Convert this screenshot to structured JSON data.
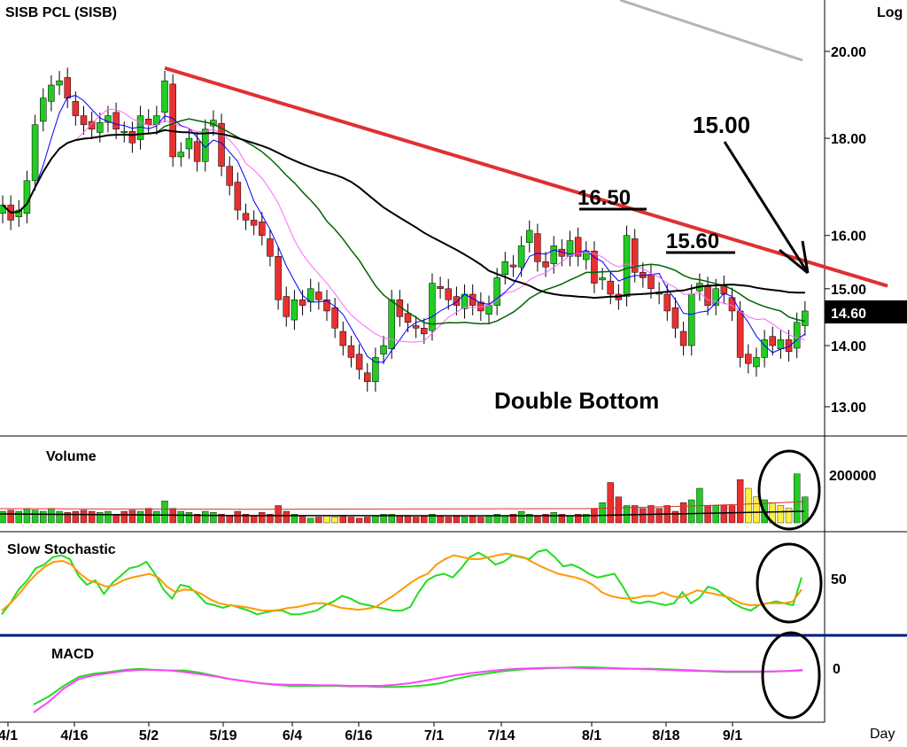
{
  "chart_data": [
    {
      "panel": "price",
      "type": "candlestick",
      "title": "SISB PCL (SISB)",
      "scale_label": "Log",
      "scale": "log",
      "ylim": [
        12.6,
        21.2
      ],
      "y_ticks": [
        "20.00",
        "18.00",
        "16.00",
        "15.00",
        "14.00",
        "13.00"
      ],
      "y_tick_values": [
        20,
        18,
        16,
        15,
        14,
        13
      ],
      "x_ticks": [
        "4/1",
        "4/16",
        "5/2",
        "5/19",
        "6/4",
        "6/16",
        "7/1",
        "7/14",
        "8/1",
        "8/18",
        "9/1"
      ],
      "x_axis_label": "Day",
      "last_price_label": "14.60",
      "last_price": 14.6,
      "closes": [
        16.6,
        16.3,
        16.5,
        17.1,
        18.3,
        18.9,
        19.2,
        19.3,
        18.9,
        18.5,
        18.3,
        18.2,
        18.35,
        18.5,
        18.2,
        18.15,
        17.9,
        18.5,
        18.3,
        18.5,
        19.3,
        17.6,
        17.7,
        18.0,
        17.5,
        18.2,
        18.4,
        17.4,
        17.0,
        16.5,
        16.3,
        16.2,
        16.0,
        15.6,
        14.8,
        14.5,
        14.8,
        14.7,
        15.0,
        14.8,
        14.6,
        14.3,
        14.0,
        13.8,
        13.6,
        13.4,
        13.8,
        14.0,
        14.8,
        14.5,
        14.4,
        14.3,
        14.2,
        15.1,
        15.0,
        14.8,
        14.7,
        14.9,
        14.7,
        14.6,
        14.7,
        15.2,
        15.5,
        15.4,
        15.8,
        16.1,
        15.5,
        15.4,
        15.8,
        15.6,
        15.9,
        15.6,
        15.7,
        15.1,
        15.2,
        14.9,
        14.8,
        16.0,
        15.3,
        15.2,
        15.0,
        14.9,
        14.6,
        14.3,
        14.0,
        14.9,
        15.1,
        14.7,
        15.0,
        14.9,
        14.6,
        13.8,
        13.7,
        13.8,
        14.1,
        14.0,
        14.1,
        13.9,
        14.4,
        14.6
      ],
      "trendline": {
        "from_index": 20,
        "from_value": 19.6,
        "to_index": 107,
        "to_value": 15.05,
        "color": "#e03030"
      },
      "ma_colors": {
        "long_sma": "#b4b4b4",
        "mid_sma": "#000000",
        "ma_green": "#006400",
        "ma_pink": "#ff66ff",
        "ma_blue": "#0000ff"
      },
      "up_color": "#22cc22",
      "down_color": "#e83030"
    },
    {
      "panel": "volume",
      "type": "bar",
      "title": "Volume",
      "y_ticks": [
        "200000"
      ],
      "volume_rel": [
        0.2,
        0.22,
        0.2,
        0.25,
        0.22,
        0.2,
        0.25,
        0.2,
        0.18,
        0.2,
        0.22,
        0.2,
        0.18,
        0.2,
        0.15,
        0.2,
        0.22,
        0.2,
        0.25,
        0.2,
        0.38,
        0.25,
        0.2,
        0.18,
        0.15,
        0.2,
        0.18,
        0.15,
        0.12,
        0.2,
        0.15,
        0.12,
        0.18,
        0.15,
        0.3,
        0.2,
        0.15,
        0.12,
        0.08,
        0.1,
        0.12,
        0.1,
        0.12,
        0.1,
        0.08,
        0.1,
        0.12,
        0.15,
        0.15,
        0.12,
        0.12,
        0.1,
        0.12,
        0.15,
        0.12,
        0.1,
        0.12,
        0.1,
        0.12,
        0.1,
        0.12,
        0.15,
        0.12,
        0.15,
        0.2,
        0.15,
        0.12,
        0.15,
        0.18,
        0.15,
        0.12,
        0.15,
        0.15,
        0.25,
        0.35,
        0.7,
        0.45,
        0.3,
        0.3,
        0.25,
        0.3,
        0.25,
        0.3,
        0.2,
        0.35,
        0.4,
        0.6,
        0.3,
        0.3,
        0.3,
        0.3,
        0.75,
        0.6,
        0.45,
        0.4,
        0.35,
        0.3,
        0.25,
        0.85,
        0.45
      ],
      "yellow_indices": [
        40,
        41,
        92,
        93,
        95,
        96,
        97
      ],
      "line_colors": {
        "red_avg": "#e03030",
        "black_avg": "#000000"
      }
    },
    {
      "panel": "stochastic",
      "type": "line",
      "title": "Slow Stochastic",
      "y_ticks": [
        "50"
      ],
      "ylim": [
        0,
        100
      ],
      "series": [
        {
          "key": "k",
          "color": "#22dd22",
          "values": [
            18,
            30,
            45,
            55,
            68,
            72,
            80,
            82,
            78,
            60,
            50,
            55,
            40,
            52,
            60,
            68,
            70,
            75,
            62,
            45,
            35,
            50,
            48,
            40,
            30,
            28,
            25,
            28,
            25,
            22,
            18,
            20,
            22,
            22,
            18,
            18,
            20,
            22,
            28,
            32,
            38,
            35,
            30,
            28,
            26,
            24,
            22,
            22,
            26,
            42,
            55,
            60,
            62,
            58,
            68,
            80,
            85,
            80,
            72,
            75,
            82,
            80,
            78,
            86,
            88,
            80,
            70,
            72,
            68,
            62,
            58,
            60,
            62,
            48,
            32,
            30,
            32,
            30,
            28,
            30,
            42,
            30,
            36,
            48,
            45,
            38,
            30,
            25,
            22,
            28,
            30,
            32,
            30,
            28,
            58
          ]
        },
        {
          "key": "d",
          "color": "#ff9900",
          "values": [
            22,
            30,
            40,
            52,
            62,
            70,
            75,
            76,
            72,
            62,
            55,
            52,
            48,
            50,
            55,
            58,
            60,
            62,
            58,
            48,
            42,
            45,
            44,
            40,
            34,
            30,
            28,
            27,
            26,
            24,
            22,
            22,
            23,
            25,
            26,
            28,
            30,
            30,
            28,
            25,
            24,
            23,
            24,
            26,
            32,
            38,
            45,
            52,
            58,
            62,
            72,
            78,
            82,
            80,
            78,
            78,
            80,
            82,
            84,
            82,
            80,
            75,
            70,
            66,
            62,
            60,
            58,
            55,
            50,
            42,
            38,
            36,
            35,
            36,
            38,
            38,
            42,
            38,
            36,
            40,
            44,
            42,
            40,
            38,
            35,
            30,
            28,
            28,
            30,
            30,
            30,
            32,
            45
          ]
        }
      ]
    },
    {
      "panel": "macd",
      "type": "line",
      "title": "MACD",
      "y_ticks": [
        "0"
      ],
      "series": [
        {
          "key": "macd",
          "color": "#22dd22",
          "values": [
            -70,
            -55,
            -35,
            -18,
            -12,
            -9,
            -5,
            -3,
            -5,
            -6,
            -6,
            -10,
            -16,
            -22,
            -26,
            -30,
            -33,
            -35,
            -35,
            -35,
            -35,
            -36,
            -36,
            -37,
            -37,
            -36,
            -34,
            -30,
            -22,
            -16,
            -12,
            -8,
            -5,
            -3,
            -2,
            -1,
            0,
            0,
            -1,
            -2,
            -3,
            -3,
            -4,
            -5,
            -6,
            -8,
            -9,
            -9,
            -9,
            -8,
            -7,
            -5
          ]
        },
        {
          "key": "signal",
          "color": "#ff44ff",
          "values": [
            -85,
            -65,
            -40,
            -22,
            -15,
            -11,
            -7,
            -5,
            -5,
            -6,
            -9,
            -13,
            -17,
            -22,
            -26,
            -30,
            -32,
            -33,
            -33,
            -34,
            -34,
            -35,
            -35,
            -35,
            -33,
            -30,
            -25,
            -20,
            -15,
            -11,
            -8,
            -5,
            -3,
            -2,
            -1,
            -1,
            -1,
            -2,
            -2,
            -3,
            -3,
            -4,
            -5,
            -6,
            -7,
            -7,
            -8,
            -8,
            -8,
            -8,
            -7,
            -6
          ]
        }
      ]
    }
  ],
  "annotations": {
    "pattern": "Double Bottom",
    "target": "15.00",
    "resistance_1": "16.50",
    "resistance_2": "15.60"
  }
}
